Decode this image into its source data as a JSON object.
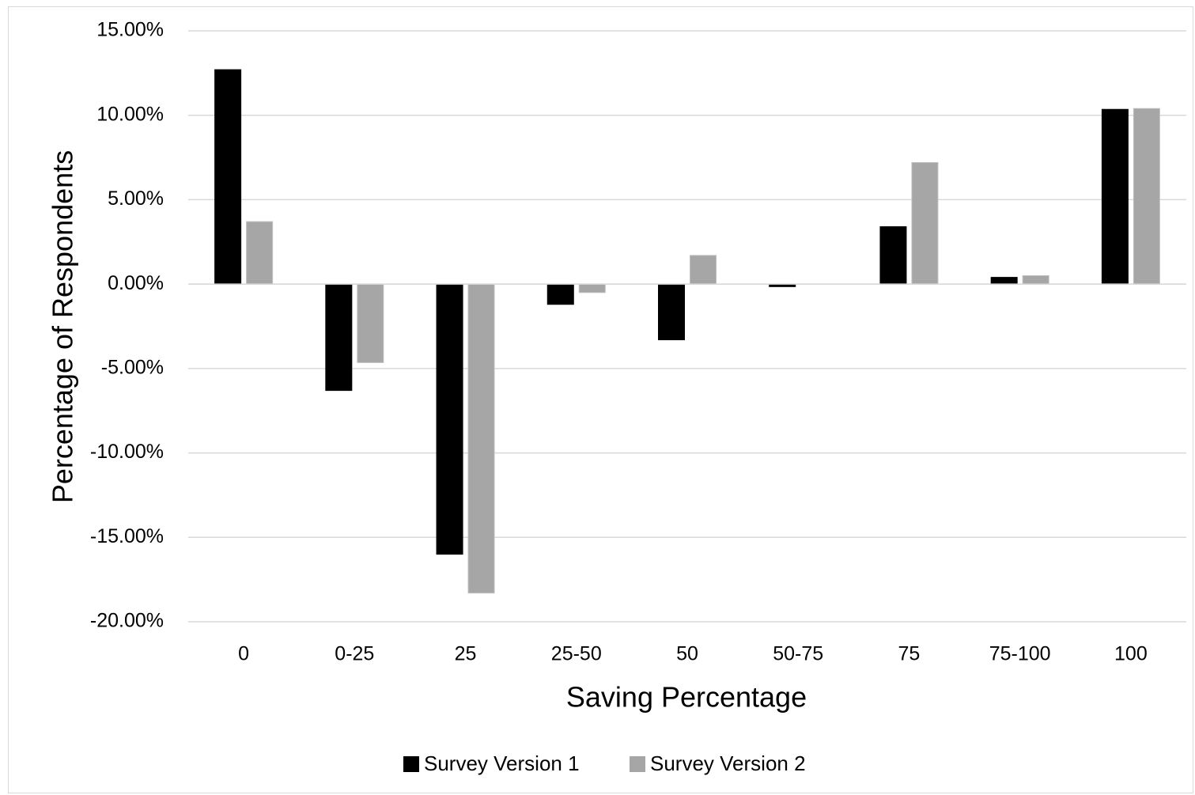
{
  "chart_data": {
    "type": "bar",
    "categories": [
      "0",
      "0-25",
      "25",
      "25-50",
      "50",
      "50-75",
      "75",
      "75-100",
      "100"
    ],
    "series": [
      {
        "name": "Survey Version 1",
        "color": "#000000",
        "values": [
          12.7,
          -6.3,
          -16.0,
          -1.2,
          -3.3,
          -0.15,
          3.4,
          0.4,
          10.35
        ]
      },
      {
        "name": "Survey Version 2",
        "color": "#a6a6a6",
        "values": [
          3.7,
          -4.65,
          -18.3,
          -0.5,
          1.7,
          0.0,
          7.2,
          0.5,
          10.4
        ]
      }
    ],
    "xlabel": "Saving Percentage",
    "ylabel": "Percentage of Respondents",
    "ylim": [
      -20,
      15
    ],
    "yticks": [
      15,
      10,
      5,
      0,
      -5,
      -10,
      -15,
      -20
    ],
    "ytick_labels": [
      "15.00%",
      "10.00%",
      "5.00%",
      "0.00%",
      "-5.00%",
      "-10.00%",
      "-15.00%",
      "-20.00%"
    ],
    "grid": true,
    "gridline_color": "#d9d9d9",
    "legend_position": "bottom"
  }
}
